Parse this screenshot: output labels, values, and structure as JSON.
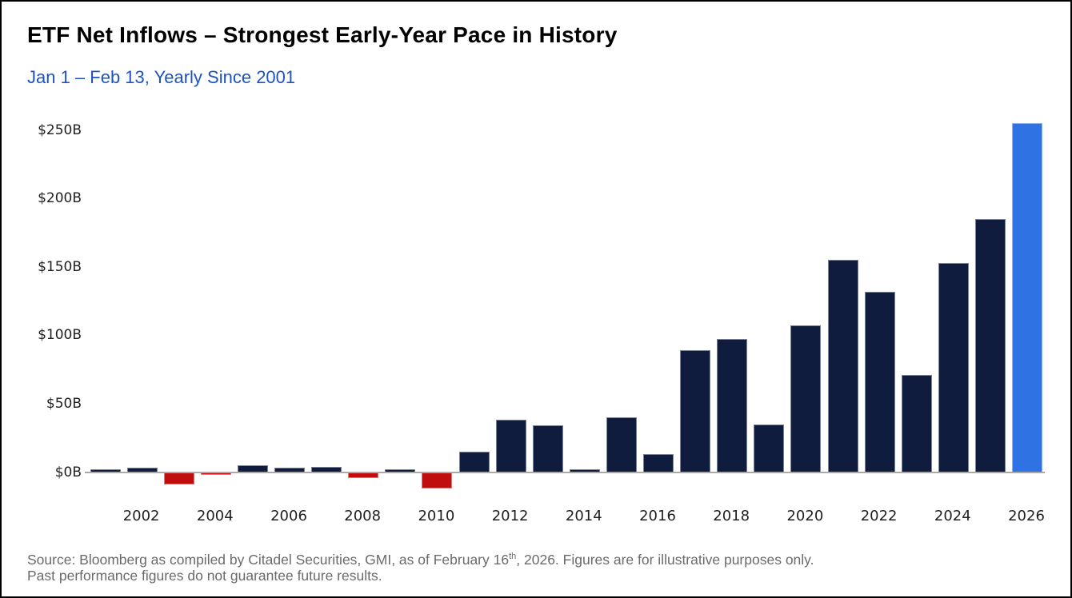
{
  "chart_data": {
    "type": "bar",
    "title": "ETF Net Inflows – Strongest Early-Year Pace in History",
    "subtitle": "Jan 1 – Feb 13, Yearly Since 2001",
    "x": [
      2001,
      2002,
      2003,
      2004,
      2005,
      2006,
      2007,
      2008,
      2009,
      2010,
      2011,
      2012,
      2013,
      2014,
      2015,
      2016,
      2017,
      2018,
      2019,
      2020,
      2021,
      2022,
      2023,
      2024,
      2025,
      2026
    ],
    "values": [
      2,
      3,
      -8,
      -1,
      5,
      3,
      4,
      -3,
      2,
      -11,
      15,
      38,
      34,
      2,
      40,
      13,
      89,
      97,
      35,
      107,
      155,
      132,
      71,
      153,
      185,
      255
    ],
    "highlight_year": 2026,
    "x_tick_labels": [
      "2002",
      "2004",
      "2006",
      "2008",
      "2010",
      "2012",
      "2014",
      "2016",
      "2018",
      "2020",
      "2022",
      "2024",
      "2026"
    ],
    "y_tick_labels": [
      "$0B",
      "$50B",
      "$100B",
      "$150B",
      "$200B",
      "$250B"
    ],
    "y_tick_values": [
      0,
      50,
      100,
      150,
      200,
      250
    ],
    "ylim": [
      -15,
      262
    ],
    "grid": false,
    "legend": "none",
    "colors": {
      "positive_bar": "#101c3e",
      "negative_bar": "#c00d0d",
      "highlight_bar": "#2e72e4",
      "axis_line": "#a9a9a9",
      "tick_label": "#1f1f1f",
      "title": "#000000",
      "subtitle": "#1d53c0",
      "source_text": "#6a6a6a"
    }
  },
  "footer": {
    "source_prefix": "Source: Bloomberg as compiled by Citadel Securities, GMI, as of February 16",
    "source_sup": "th",
    "source_suffix": ", 2026. Figures are for illustrative purposes only.",
    "source_line2": "Past performance figures do not guarantee future results."
  }
}
